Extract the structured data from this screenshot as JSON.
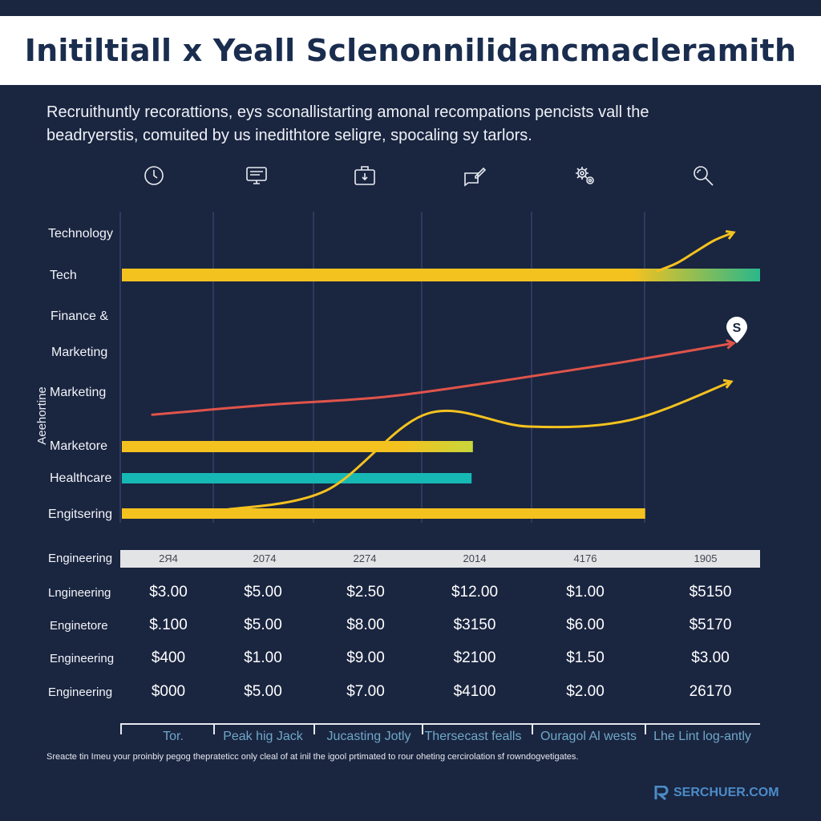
{
  "title": "Initiltiall x Yeall Sclenonnilidancmacleramith",
  "subtitle_lines": [
    "Recruithuntly recorattions, eys sconallistarting amonal recompations pencists vall the",
    "beadryerstis, comuited by us inedithtore seligre, spocaling sy tarlors."
  ],
  "icons": [
    "clock-icon",
    "monitor-icon",
    "briefcase-icon",
    "pen-chat-icon",
    "gears-icon",
    "search-magnifier-icon"
  ],
  "y_axis_label": "Aeehortine",
  "row_labels": [
    "Technology",
    "Tech",
    "Finance &",
    "Marketing",
    "Marketing",
    "Marketore",
    "Healthcare",
    "Engitsering"
  ],
  "chart_data": {
    "type": "bar",
    "title": "Initiltiall x Yeall Sclenonnilidancmacleramith",
    "bars": [
      {
        "category": "Tech",
        "value": 1.0,
        "color": "#f4c21f",
        "end_color": "#2ab88a"
      },
      {
        "category": "Marketore",
        "value": 0.55,
        "color": "#f4c21f",
        "end_color": "#c8d63a"
      },
      {
        "category": "Healthcare",
        "value": 0.548,
        "color": "#16b8b4"
      },
      {
        "category": "Engitsering",
        "value": 0.82,
        "color": "#f4c21f"
      }
    ],
    "lines": [
      {
        "name": "red-trend",
        "color": "#e0544a",
        "values": [
          0.28,
          0.38,
          0.46,
          0.62,
          0.8,
          1.0
        ],
        "marker": "S"
      },
      {
        "name": "yellow-tech-trend",
        "color": "#f4c21f",
        "values": [
          0.0,
          0.2,
          0.5,
          0.8,
          1.0
        ]
      },
      {
        "name": "yellow-curve",
        "color": "#f4c21f",
        "values": [
          0.0,
          0.15,
          0.75,
          0.65,
          0.7,
          1.0
        ]
      }
    ],
    "grid": true
  },
  "table": {
    "headers": [
      "2Я4",
      "2074",
      "2274",
      "2014",
      "4176",
      "1905"
    ],
    "rows": [
      {
        "label": "Engineering",
        "values": [
          "",
          "",
          "",
          "",
          "",
          ""
        ]
      },
      {
        "label": "Lngineering",
        "values": [
          "$3.00",
          "$5.00",
          "$2.50",
          "$12.00",
          "$1.00",
          "$5150"
        ]
      },
      {
        "label": "Enginetore",
        "values": [
          "$.100",
          "$5.00",
          "$8.00",
          "$3150",
          "$6.00",
          "$5170"
        ]
      },
      {
        "label": "Engineering",
        "values": [
          "$400",
          "$1.00",
          "$9.00",
          "$2100",
          "$1.50",
          "$3.00"
        ]
      },
      {
        "label": "Engineering",
        "values": [
          "$000",
          "$5.00",
          "$7.00",
          "$4100",
          "$2.00",
          "26170"
        ]
      }
    ]
  },
  "footer_labels": [
    "Tor.",
    "Peak hig Jack",
    "Jucasting Jotly",
    "Thersecast fealls",
    "Ouragol Al wests",
    "Lhe Lint log-antly"
  ],
  "note": "Sreacte tin Imeu your proinbiy pegog theprateticc only cleal of at inil the igool prtimated to rour oheting cercirolation sf rowndogvetigates.",
  "brand": "SERCHUER.COM",
  "marker_label": "S"
}
